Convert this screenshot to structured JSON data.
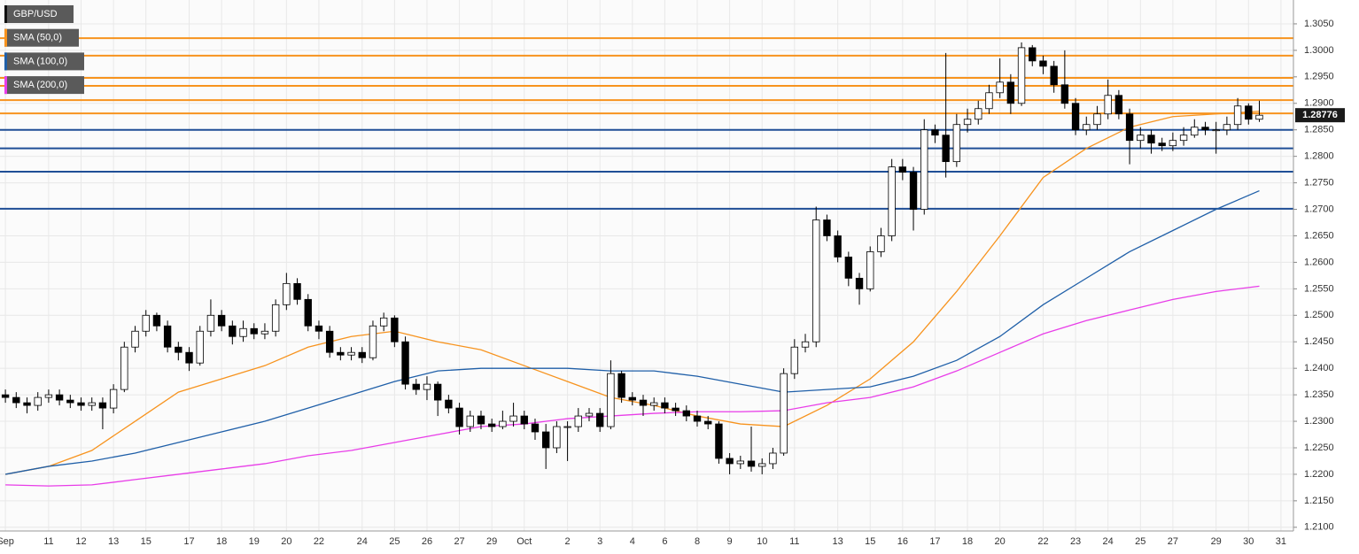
{
  "chart_data": {
    "type": "candlestick",
    "name": "GBP/USD",
    "color": "#000000",
    "categories": [
      "Sep",
      null,
      null,
      null,
      "11",
      null,
      null,
      "12",
      null,
      null,
      "13",
      null,
      null,
      "15",
      null,
      null,
      null,
      "17",
      null,
      null,
      "18",
      null,
      null,
      "19",
      null,
      null,
      "20",
      null,
      null,
      "22",
      null,
      null,
      null,
      "24",
      null,
      null,
      "25",
      null,
      null,
      "26",
      null,
      null,
      "27",
      null,
      null,
      "29",
      null,
      null,
      "Oct",
      null,
      null,
      null,
      "2",
      null,
      null,
      "3",
      null,
      null,
      "4",
      null,
      null,
      "6",
      null,
      null,
      "8",
      null,
      null,
      "9",
      null,
      null,
      "10",
      null,
      null,
      "11",
      null,
      null,
      null,
      "13",
      null,
      null,
      "15",
      null,
      null,
      "16",
      null,
      null,
      "17",
      null,
      null,
      "18",
      null,
      null,
      "20",
      null,
      null,
      null,
      "22",
      null,
      null,
      "23",
      null,
      null,
      "24",
      null,
      null,
      "25",
      null,
      null,
      "27",
      null,
      null,
      null,
      "29",
      null,
      null,
      "30",
      null,
      null,
      "31"
    ],
    "open": [
      1.235,
      1.2345,
      1.2335,
      1.233,
      1.2345,
      1.235,
      1.234,
      1.2335,
      1.233,
      1.2335,
      1.2325,
      1.236,
      1.244,
      1.247,
      1.25,
      1.248,
      1.244,
      1.243,
      1.241,
      1.247,
      1.25,
      1.248,
      1.246,
      1.2475,
      1.2465,
      1.247,
      1.252,
      1.256,
      1.253,
      1.248,
      1.247,
      1.243,
      1.2425,
      1.243,
      1.242,
      1.248,
      1.2495,
      1.245,
      1.237,
      1.236,
      1.237,
      1.234,
      1.2325,
      1.229,
      1.231,
      1.2295,
      1.229,
      1.23,
      1.231,
      1.2295,
      1.228,
      1.225,
      1.229,
      1.229,
      1.231,
      1.2315,
      1.229,
      1.239,
      1.2345,
      1.234,
      1.233,
      1.2335,
      1.2325,
      1.232,
      1.231,
      1.23,
      1.2295,
      1.223,
      1.222,
      1.2225,
      1.2215,
      1.222,
      1.224,
      1.239,
      1.244,
      1.245,
      1.268,
      1.265,
      1.261,
      1.257,
      1.255,
      1.262,
      1.265,
      1.278,
      1.277,
      1.27,
      1.285,
      1.284,
      1.279,
      1.286,
      1.287,
      1.289,
      1.292,
      1.294,
      1.29,
      1.3005,
      1.298,
      1.297,
      1.2935,
      1.29,
      1.285,
      1.286,
      1.288,
      1.2915,
      1.288,
      1.283,
      1.284,
      1.2825,
      1.282,
      1.283,
      1.284,
      1.2855,
      1.285,
      1.285,
      1.286,
      1.2895,
      1.287,
      null,
      null
    ],
    "high": [
      1.236,
      1.2355,
      1.2345,
      1.2355,
      1.236,
      1.236,
      1.235,
      1.2345,
      1.2345,
      1.2345,
      1.237,
      1.245,
      1.248,
      1.251,
      1.2505,
      1.249,
      1.245,
      1.244,
      1.248,
      1.253,
      1.251,
      1.249,
      1.249,
      1.2485,
      1.2485,
      1.253,
      1.258,
      1.257,
      1.254,
      1.249,
      1.248,
      1.244,
      1.244,
      1.244,
      1.249,
      1.2505,
      1.25,
      1.246,
      1.238,
      1.2385,
      1.2375,
      1.235,
      1.2335,
      1.232,
      1.232,
      1.2305,
      1.232,
      1.2335,
      1.232,
      1.2305,
      1.2295,
      1.23,
      1.23,
      1.2325,
      1.2325,
      1.2325,
      1.2415,
      1.2395,
      1.2355,
      1.235,
      1.2345,
      1.2345,
      1.2335,
      1.233,
      1.232,
      1.231,
      1.23,
      1.224,
      1.2235,
      1.229,
      1.223,
      1.225,
      1.24,
      1.2455,
      1.2465,
      1.2705,
      1.269,
      1.266,
      1.262,
      1.258,
      1.263,
      1.2665,
      1.2795,
      1.2795,
      1.278,
      1.287,
      1.286,
      1.2995,
      1.288,
      1.289,
      1.2905,
      1.2935,
      1.2985,
      1.2955,
      1.3015,
      1.301,
      1.299,
      1.298,
      1.3,
      1.291,
      1.2875,
      1.2895,
      1.2945,
      1.2925,
      1.289,
      1.2855,
      1.285,
      1.2835,
      1.2845,
      1.2855,
      1.287,
      1.2865,
      1.2865,
      1.2875,
      1.291,
      1.29,
      1.2905,
      null,
      null
    ],
    "low": [
      1.2335,
      1.2325,
      1.2315,
      1.232,
      1.2335,
      1.233,
      1.2325,
      1.232,
      1.232,
      1.2285,
      1.2315,
      1.2355,
      1.243,
      1.246,
      1.247,
      1.243,
      1.2415,
      1.2395,
      1.2405,
      1.246,
      1.247,
      1.2445,
      1.245,
      1.2455,
      1.2455,
      1.246,
      1.251,
      1.252,
      1.247,
      1.2455,
      1.242,
      1.2415,
      1.2415,
      1.241,
      1.2415,
      1.247,
      1.244,
      1.236,
      1.235,
      1.234,
      1.231,
      1.2315,
      1.2275,
      1.228,
      1.2285,
      1.228,
      1.2285,
      1.229,
      1.2285,
      1.2265,
      1.221,
      1.224,
      1.2225,
      1.228,
      1.23,
      1.228,
      1.2285,
      1.2335,
      1.233,
      1.231,
      1.232,
      1.2315,
      1.231,
      1.23,
      1.229,
      1.2285,
      1.222,
      1.22,
      1.221,
      1.2205,
      1.22,
      1.221,
      1.2235,
      1.238,
      1.243,
      1.244,
      1.264,
      1.26,
      1.2555,
      1.252,
      1.2545,
      1.261,
      1.264,
      1.2755,
      1.266,
      1.269,
      1.2825,
      1.276,
      1.278,
      1.2845,
      1.286,
      1.288,
      1.291,
      1.288,
      1.2895,
      1.297,
      1.2955,
      1.292,
      1.289,
      1.284,
      1.284,
      1.285,
      1.287,
      1.287,
      1.2785,
      1.2815,
      1.2805,
      1.281,
      1.281,
      1.282,
      1.2835,
      1.284,
      1.2805,
      1.284,
      1.285,
      1.286,
      1.2865,
      null,
      null
    ],
    "close": [
      1.2345,
      1.2335,
      1.233,
      1.2345,
      1.235,
      1.234,
      1.2335,
      1.233,
      1.2335,
      1.2325,
      1.236,
      1.244,
      1.247,
      1.25,
      1.248,
      1.244,
      1.243,
      1.241,
      1.247,
      1.25,
      1.248,
      1.246,
      1.2475,
      1.2465,
      1.247,
      1.252,
      1.256,
      1.253,
      1.248,
      1.247,
      1.243,
      1.2425,
      1.243,
      1.242,
      1.248,
      1.2495,
      1.245,
      1.237,
      1.236,
      1.237,
      1.234,
      1.2325,
      1.229,
      1.231,
      1.2295,
      1.229,
      1.23,
      1.231,
      1.2295,
      1.228,
      1.225,
      1.229,
      1.229,
      1.231,
      1.2315,
      1.229,
      1.239,
      1.2345,
      1.234,
      1.233,
      1.2335,
      1.2325,
      1.232,
      1.231,
      1.23,
      1.2295,
      1.223,
      1.222,
      1.2225,
      1.2215,
      1.222,
      1.224,
      1.239,
      1.244,
      1.245,
      1.268,
      1.265,
      1.261,
      1.257,
      1.255,
      1.262,
      1.265,
      1.278,
      1.277,
      1.27,
      1.285,
      1.284,
      1.279,
      1.286,
      1.287,
      1.289,
      1.292,
      1.294,
      1.29,
      1.3005,
      1.298,
      1.297,
      1.2935,
      1.29,
      1.285,
      1.286,
      1.288,
      1.2915,
      1.288,
      1.283,
      1.284,
      1.2825,
      1.282,
      1.283,
      1.284,
      1.2855,
      1.285,
      1.285,
      1.286,
      1.2895,
      1.287,
      1.28776,
      null,
      null
    ],
    "overlays": [
      {
        "name": "SMA (50,0)",
        "color": "#f7931e",
        "x": [
          0,
          4,
          8,
          12,
          16,
          20,
          24,
          28,
          32,
          36,
          40,
          44,
          48,
          52,
          56,
          60,
          64,
          68,
          72,
          76,
          80,
          84,
          88,
          92,
          96,
          100,
          104,
          108,
          112,
          116
        ],
        "values": [
          1.22,
          1.2215,
          1.2245,
          1.23,
          1.2355,
          1.238,
          1.2405,
          1.244,
          1.246,
          1.247,
          1.245,
          1.2435,
          1.2405,
          1.2375,
          1.2345,
          1.233,
          1.231,
          1.2295,
          1.229,
          1.233,
          1.238,
          1.245,
          1.2545,
          1.265,
          1.276,
          1.2815,
          1.2855,
          1.2875,
          1.288,
          1.2885
        ]
      },
      {
        "name": "SMA (100,0)",
        "color": "#1f5fa8",
        "x": [
          0,
          4,
          8,
          12,
          16,
          20,
          24,
          28,
          32,
          36,
          40,
          44,
          48,
          52,
          56,
          60,
          64,
          68,
          72,
          76,
          80,
          84,
          88,
          92,
          96,
          100,
          104,
          108,
          112,
          116
        ],
        "values": [
          1.22,
          1.2215,
          1.2225,
          1.224,
          1.226,
          1.228,
          1.23,
          1.2325,
          1.235,
          1.2375,
          1.2395,
          1.24,
          1.24,
          1.24,
          1.2395,
          1.2395,
          1.2385,
          1.237,
          1.2355,
          1.236,
          1.2365,
          1.2385,
          1.2415,
          1.246,
          1.252,
          1.257,
          1.262,
          1.266,
          1.27,
          1.2735
        ]
      },
      {
        "name": "SMA (200,0)",
        "color": "#e83de8",
        "x": [
          0,
          4,
          8,
          12,
          16,
          20,
          24,
          28,
          32,
          36,
          40,
          44,
          48,
          52,
          56,
          60,
          64,
          68,
          72,
          76,
          80,
          84,
          88,
          92,
          96,
          100,
          104,
          108,
          112,
          116
        ],
        "values": [
          1.218,
          1.2178,
          1.218,
          1.219,
          1.22,
          1.221,
          1.222,
          1.2235,
          1.2245,
          1.226,
          1.2275,
          1.229,
          1.2295,
          1.2305,
          1.231,
          1.2315,
          1.2318,
          1.2318,
          1.232,
          1.2335,
          1.2345,
          1.2365,
          1.2395,
          1.243,
          1.2465,
          1.249,
          1.251,
          1.253,
          1.2545,
          1.2555
        ]
      }
    ],
    "hlines": [
      {
        "value": 1.3023,
        "color": "#f7931e"
      },
      {
        "value": 1.299,
        "color": "#f7931e"
      },
      {
        "value": 1.2948,
        "color": "#f7931e"
      },
      {
        "value": 1.2933,
        "color": "#f7931e"
      },
      {
        "value": 1.2906,
        "color": "#f7931e"
      },
      {
        "value": 1.2881,
        "color": "#f7931e"
      },
      {
        "value": 1.285,
        "color": "#1f4e96"
      },
      {
        "value": 1.2815,
        "color": "#1f4e96"
      },
      {
        "value": 1.2771,
        "color": "#1f4e96"
      },
      {
        "value": 1.2701,
        "color": "#1f4e96"
      }
    ],
    "ylim": [
      1.2093,
      1.3095
    ],
    "yticks": [
      {
        "value": 1.305,
        "label": "1.3050"
      },
      {
        "value": 1.3,
        "label": "1.3000"
      },
      {
        "value": 1.295,
        "label": "1.2950"
      },
      {
        "value": 1.29,
        "label": "1.2900"
      },
      {
        "value": 1.285,
        "label": "1.2850"
      },
      {
        "value": 1.28,
        "label": "1.2800"
      },
      {
        "value": 1.275,
        "label": "1.2750"
      },
      {
        "value": 1.27,
        "label": "1.2700"
      },
      {
        "value": 1.265,
        "label": "1.2650"
      },
      {
        "value": 1.26,
        "label": "1.2600"
      },
      {
        "value": 1.255,
        "label": "1.2550"
      },
      {
        "value": 1.25,
        "label": "1.2500"
      },
      {
        "value": 1.245,
        "label": "1.2450"
      },
      {
        "value": 1.24,
        "label": "1.2400"
      },
      {
        "value": 1.235,
        "label": "1.2350"
      },
      {
        "value": 1.23,
        "label": "1.2300"
      },
      {
        "value": 1.225,
        "label": "1.2250"
      },
      {
        "value": 1.22,
        "label": "1.2200"
      },
      {
        "value": 1.215,
        "label": "1.2150"
      },
      {
        "value": 1.21,
        "label": "1.2100"
      }
    ],
    "grid": true
  }
}
